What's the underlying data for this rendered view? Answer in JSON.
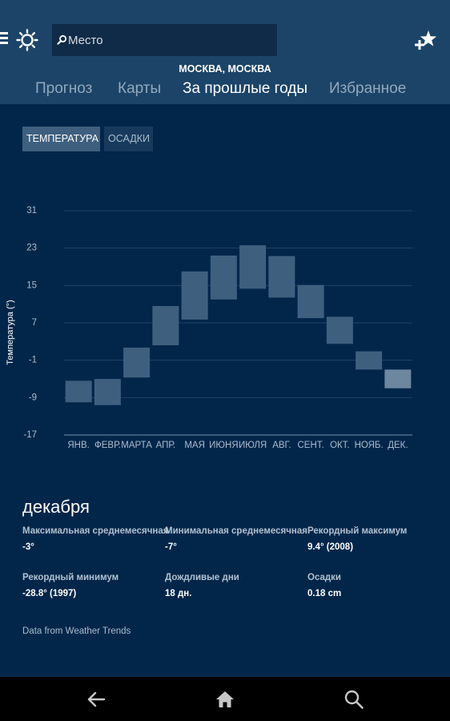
{
  "header": {
    "search_placeholder": "Место",
    "location": "МОСКВА, МОСКВА",
    "tabs": [
      {
        "label": "Прогноз"
      },
      {
        "label": "Карты"
      },
      {
        "label": "За прошлые годы"
      },
      {
        "label": "Избранное"
      }
    ],
    "active_tab": "За прошлые годы"
  },
  "toggle": {
    "temperature": "ТЕМПЕРАТУРА",
    "precipitation": "ОСАДКИ",
    "selected": "ТЕМПЕРАТУРА"
  },
  "chart_data": {
    "type": "bar",
    "ylabel": "Температура (°)",
    "yticks": [
      31,
      23,
      15,
      7,
      -1,
      -9,
      -17
    ],
    "ylim": [
      -17,
      31
    ],
    "categories": [
      "ЯНВ.",
      "ФЕВР.",
      "МАРТА",
      "АПР.",
      "МАЯ",
      "ИЮНЯ",
      "ИЮЛЯ",
      "АВГ.",
      "СЕНТ.",
      "ОКТ.",
      "НОЯБ.",
      "ДЕК."
    ],
    "series": [
      {
        "low": [
          -10.0,
          -10.6,
          -4.7,
          2.2,
          7.7,
          12.0,
          14.3,
          12.4,
          8.0,
          2.5,
          -3.0,
          -7.0
        ],
        "high": [
          -5.4,
          -5.0,
          1.7,
          10.6,
          18.0,
          21.4,
          23.6,
          21.3,
          15.1,
          8.3,
          0.9,
          -3.0
        ]
      }
    ],
    "highlighted_category": "ДЕК.",
    "grid": true
  },
  "details": {
    "month": "декабря",
    "stats": [
      {
        "label": "Максимальная среднемесячная",
        "value": "-3°"
      },
      {
        "label": "Минимальная среднемесячная",
        "value": "-7°"
      },
      {
        "label": "Рекордный максимум",
        "value": "9.4° (2008)"
      },
      {
        "label": "Рекордный минимум",
        "value": "-28.8° (1997)"
      },
      {
        "label": "Дождливые дни",
        "value": "18 дн."
      },
      {
        "label": "Осадки",
        "value": "0.18 cm"
      }
    ],
    "source": "Data from Weather Trends"
  },
  "colors": {
    "header_bg": "#1c4468",
    "page_bg": "#02264a",
    "bar": "#3f5f7f",
    "bar_selected": "#6e87a0"
  },
  "icons": [
    "menu-icon",
    "sun-icon",
    "search-icon",
    "favorite-star-plus-icon",
    "back-arrow-icon",
    "home-icon",
    "search-nav-icon"
  ]
}
